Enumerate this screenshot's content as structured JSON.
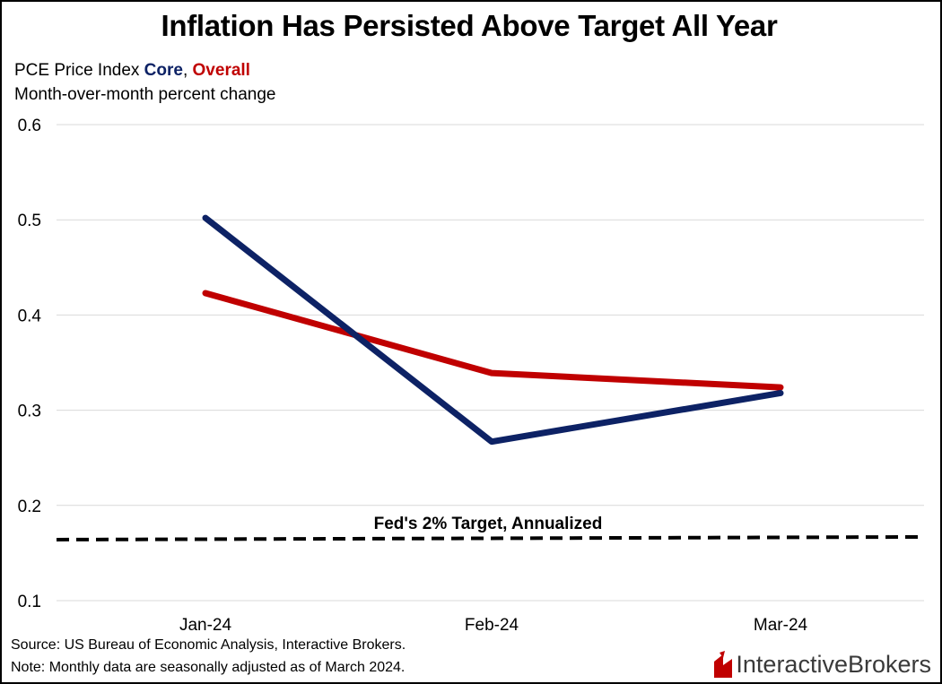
{
  "title": "Inflation Has Persisted Above Target All Year",
  "subtitle": {
    "prefix": "PCE Price Index ",
    "core": "Core",
    "separator": ", ",
    "overall": "Overall",
    "line2": "Month-over-month percent change"
  },
  "annotation": "Fed's 2% Target, Annualized",
  "source": "Source: US Bureau of Economic Analysis, Interactive Brokers.",
  "note": "Note: Monthly data are seasonally adjusted as of March 2024.",
  "logo": {
    "part1": "Interactive",
    "part2": "Brokers"
  },
  "colors": {
    "core": "#0d2265",
    "overall": "#c00000",
    "target": "#000000",
    "grid": "#d9d9d9"
  },
  "chart_data": {
    "type": "line",
    "categories": [
      "Jan-24",
      "Feb-24",
      "Mar-24"
    ],
    "series": [
      {
        "name": "Core",
        "values": [
          0.502,
          0.267,
          0.318
        ]
      },
      {
        "name": "Overall",
        "values": [
          0.423,
          0.339,
          0.324
        ]
      }
    ],
    "reference_line": {
      "label": "Fed's 2% Target, Annualized",
      "value": 0.165,
      "style": "dashed"
    },
    "ylim": [
      0.1,
      0.6
    ],
    "yticks": [
      0.1,
      0.2,
      0.3,
      0.4,
      0.5,
      0.6
    ],
    "grid": true,
    "xlabel": "",
    "ylabel": ""
  }
}
